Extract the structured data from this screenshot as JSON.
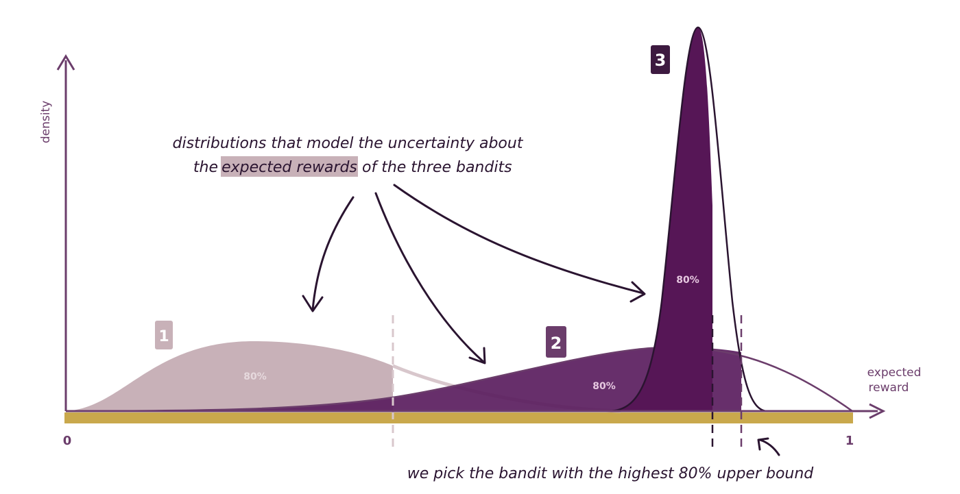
{
  "axes": {
    "y_label": "density",
    "x_label_line1": "expected",
    "x_label_line2": "reward",
    "tick_min": "0",
    "tick_max": "1"
  },
  "annotation": {
    "line1": "distributions that model the uncertainty about",
    "line2_before": "the",
    "line2_highlight": "expected rewards",
    "line2_after": "of the three bandits"
  },
  "footer_note": "we pick the bandit with the highest 80% upper bound",
  "bandits": [
    {
      "label": "1",
      "pct_label": "80%"
    },
    {
      "label": "2",
      "pct_label": "80%"
    },
    {
      "label": "3",
      "pct_label": "80%"
    }
  ],
  "colors": {
    "axis": "#6b3d6b",
    "baseline": "#c9a84c",
    "bandit1": "#c8b1b8",
    "bandit2": "#5a1d5e",
    "bandit3": "#561656",
    "highlight": "#c8b1b8",
    "arrow": "#2a1430"
  }
}
